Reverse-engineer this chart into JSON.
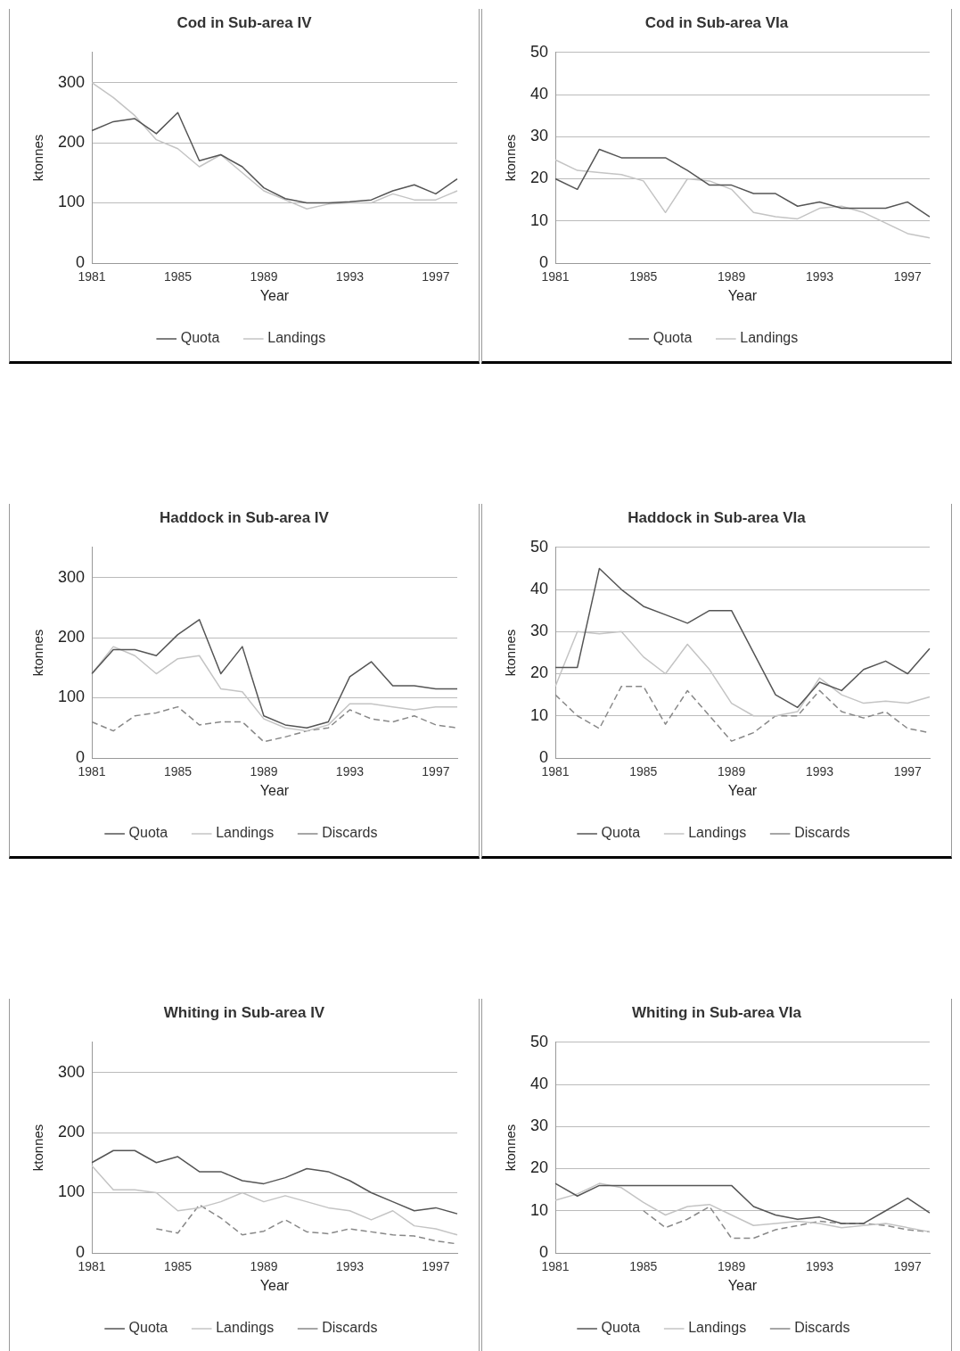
{
  "chart_data": [
    {
      "type": "line",
      "title": "Cod in Sub-area IV",
      "xlabel": "Year",
      "ylabel": "ktonnes",
      "categories": [
        "1981",
        null,
        null,
        null,
        "1985",
        null,
        null,
        null,
        "1989",
        null,
        null,
        null,
        "1993",
        null,
        null,
        null,
        "1997",
        null
      ],
      "ylim": [
        0,
        350
      ],
      "yticks": [
        0,
        100,
        200,
        300
      ],
      "grid": "y",
      "legend": "bottom",
      "marker": "none",
      "series": [
        {
          "name": "Quota",
          "color": "#555555",
          "line_style": "solid",
          "values": [
            220,
            235,
            240,
            215,
            250,
            170,
            180,
            160,
            125,
            107,
            100,
            100,
            102,
            105,
            120,
            130,
            115,
            140
          ]
        },
        {
          "name": "Landings",
          "color": "#c4c4c4",
          "line_style": "solid",
          "values": [
            300,
            275,
            245,
            205,
            190,
            160,
            180,
            150,
            120,
            105,
            90,
            98,
            100,
            100,
            115,
            105,
            105,
            120
          ]
        }
      ]
    },
    {
      "type": "line",
      "title": "Cod in Sub-area VIa",
      "xlabel": "Year",
      "ylabel": "ktonnes",
      "categories": [
        "1981",
        null,
        null,
        null,
        "1985",
        null,
        null,
        null,
        "1989",
        null,
        null,
        null,
        "1993",
        null,
        null,
        null,
        "1997",
        null
      ],
      "ylim": [
        0,
        50
      ],
      "yticks": [
        0,
        10,
        20,
        30,
        40,
        50
      ],
      "grid": "y",
      "legend": "bottom",
      "marker": "none",
      "series": [
        {
          "name": "Quota",
          "color": "#555555",
          "line_style": "solid",
          "values": [
            20,
            17.5,
            27,
            25,
            25,
            25,
            22,
            18.5,
            18.5,
            16.5,
            16.5,
            13.5,
            14.5,
            13,
            13,
            13,
            14.5,
            11
          ]
        },
        {
          "name": "Landings",
          "color": "#c4c4c4",
          "line_style": "solid",
          "values": [
            24.5,
            22,
            21.5,
            21,
            19.5,
            12,
            20,
            19.5,
            17.5,
            12,
            11,
            10.5,
            13,
            13.5,
            12,
            9.5,
            7,
            6
          ]
        }
      ]
    },
    {
      "type": "line",
      "title": "Haddock in Sub-area IV",
      "xlabel": "Year",
      "ylabel": "ktonnes",
      "categories": [
        "1981",
        null,
        null,
        null,
        "1985",
        null,
        null,
        null,
        "1989",
        null,
        null,
        null,
        "1993",
        null,
        null,
        null,
        "1997",
        null
      ],
      "ylim": [
        0,
        350
      ],
      "yticks": [
        0,
        100,
        200,
        300
      ],
      "grid": "y",
      "legend": "bottom",
      "marker": "none",
      "series": [
        {
          "name": "Quota",
          "color": "#555555",
          "line_style": "solid",
          "values": [
            140,
            180,
            180,
            170,
            205,
            230,
            140,
            185,
            70,
            55,
            50,
            60,
            135,
            160,
            120,
            120,
            115,
            115
          ]
        },
        {
          "name": "Landings",
          "color": "#c4c4c4",
          "line_style": "solid",
          "values": [
            140,
            185,
            170,
            140,
            165,
            170,
            115,
            110,
            65,
            50,
            45,
            55,
            90,
            90,
            85,
            80,
            85,
            85
          ]
        },
        {
          "name": "Discards",
          "color": "#888888",
          "line_style": "dashed",
          "values": [
            60,
            45,
            70,
            75,
            85,
            55,
            60,
            60,
            27,
            35,
            45,
            50,
            80,
            65,
            60,
            70,
            55,
            50
          ]
        }
      ]
    },
    {
      "type": "line",
      "title": "Haddock in Sub-area VIa",
      "xlabel": "Year",
      "ylabel": "ktonnes",
      "categories": [
        "1981",
        null,
        null,
        null,
        "1985",
        null,
        null,
        null,
        "1989",
        null,
        null,
        null,
        "1993",
        null,
        null,
        null,
        "1997",
        null
      ],
      "ylim": [
        0,
        50
      ],
      "yticks": [
        0,
        10,
        20,
        30,
        40,
        50
      ],
      "grid": "y",
      "legend": "bottom",
      "marker": "none",
      "series": [
        {
          "name": "Quota",
          "color": "#555555",
          "line_style": "solid",
          "values": [
            21.5,
            21.5,
            45,
            40,
            36,
            34,
            32,
            35,
            35,
            25,
            15,
            12,
            18,
            16,
            21,
            23,
            20,
            26
          ]
        },
        {
          "name": "Landings",
          "color": "#c4c4c4",
          "line_style": "solid",
          "values": [
            17,
            30,
            29.5,
            30,
            24,
            20,
            27,
            21,
            13,
            10,
            10,
            11,
            19,
            15,
            13,
            13.5,
            13,
            14.5
          ]
        },
        {
          "name": "Discards",
          "color": "#888888",
          "line_style": "dashed",
          "values": [
            15,
            10,
            7,
            17,
            17,
            8,
            16,
            10,
            4,
            6,
            10,
            10,
            16,
            11,
            9.5,
            11,
            7,
            6
          ]
        }
      ]
    },
    {
      "type": "line",
      "title": "Whiting in Sub-area IV",
      "xlabel": "Year",
      "ylabel": "ktonnes",
      "categories": [
        "1981",
        null,
        null,
        null,
        "1985",
        null,
        null,
        null,
        "1989",
        null,
        null,
        null,
        "1993",
        null,
        null,
        null,
        "1997",
        null
      ],
      "ylim": [
        0,
        350
      ],
      "yticks": [
        0,
        100,
        200,
        300
      ],
      "grid": "y",
      "legend": "bottom",
      "marker": "none",
      "series": [
        {
          "name": "Quota",
          "color": "#555555",
          "line_style": "solid",
          "values": [
            150,
            170,
            170,
            150,
            160,
            135,
            135,
            120,
            115,
            125,
            140,
            135,
            120,
            100,
            85,
            70,
            75,
            65
          ]
        },
        {
          "name": "Landings",
          "color": "#c4c4c4",
          "line_style": "solid",
          "values": [
            145,
            105,
            105,
            100,
            70,
            75,
            85,
            100,
            85,
            95,
            85,
            75,
            70,
            55,
            70,
            45,
            40,
            30
          ]
        },
        {
          "name": "Discards",
          "color": "#888888",
          "line_style": "dashed",
          "values": [
            null,
            null,
            null,
            40,
            33,
            80,
            58,
            30,
            36,
            55,
            35,
            32,
            40,
            35,
            30,
            28,
            20,
            15
          ]
        }
      ]
    },
    {
      "type": "line",
      "title": "Whiting in Sub-area VIa",
      "xlabel": "Year",
      "ylabel": "ktonnes",
      "categories": [
        "1981",
        null,
        null,
        null,
        "1985",
        null,
        null,
        null,
        "1989",
        null,
        null,
        null,
        "1993",
        null,
        null,
        null,
        "1997",
        null
      ],
      "ylim": [
        0,
        50
      ],
      "yticks": [
        0,
        10,
        20,
        30,
        40,
        50
      ],
      "grid": "y",
      "legend": "bottom",
      "marker": "none",
      "series": [
        {
          "name": "Quota",
          "color": "#555555",
          "line_style": "solid",
          "values": [
            16.5,
            13.5,
            16,
            16,
            16,
            16,
            16,
            16,
            16,
            11,
            9,
            8,
            8.5,
            7,
            7,
            10,
            13,
            9.5
          ]
        },
        {
          "name": "Landings",
          "color": "#c4c4c4",
          "line_style": "solid",
          "values": [
            12.5,
            14,
            16.5,
            15.5,
            12,
            9,
            11,
            11.5,
            9,
            6.5,
            7,
            7.5,
            7,
            6,
            6.5,
            7,
            6,
            5
          ]
        },
        {
          "name": "Discards",
          "color": "#888888",
          "line_style": "dashed",
          "values": [
            null,
            null,
            null,
            null,
            10,
            6,
            8,
            11,
            3.5,
            3.5,
            5.5,
            6.5,
            7.5,
            7,
            7,
            6.5,
            5.5,
            5
          ]
        }
      ]
    }
  ]
}
